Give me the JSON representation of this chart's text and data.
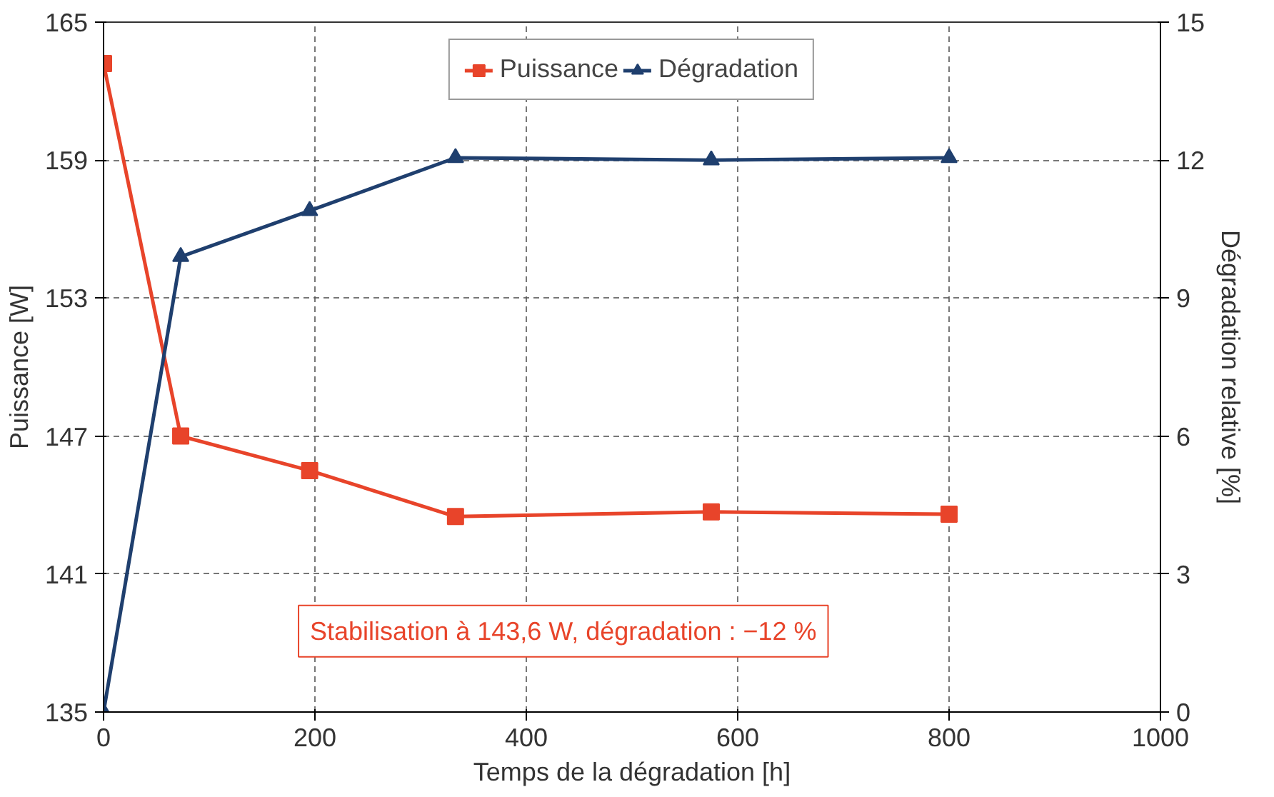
{
  "chart_data": {
    "type": "line",
    "xlabel": "Temps de la dégradation [h]",
    "ylabel": "Puissance [W]",
    "y2label": "Dégradation relative [%]",
    "xlim": [
      0,
      1000
    ],
    "xticks": [
      0,
      200,
      400,
      600,
      800,
      1000
    ],
    "ylim": [
      135,
      165
    ],
    "yticks": [
      135,
      141,
      147,
      153,
      159,
      165
    ],
    "y2lim": [
      0,
      15
    ],
    "y2ticks": [
      0,
      3,
      6,
      9,
      12,
      15
    ],
    "grid": true,
    "legend": "top",
    "line_style": "solid",
    "series": [
      {
        "name": "Puissance",
        "color": "#e8442a",
        "marker": "square",
        "x": [
          0,
          73,
          195,
          333,
          575,
          800
        ],
        "values": [
          163.2,
          147.0,
          145.5,
          143.5,
          143.7,
          143.6
        ]
      },
      {
        "name": "Dégradation",
        "color": "#1f3f6e",
        "marker": "triangle",
        "axis": "y2",
        "x": [
          0,
          73,
          195,
          333,
          575,
          800
        ],
        "values": [
          0,
          9.9,
          10.9,
          12.05,
          12.0,
          12.05
        ]
      }
    ],
    "annotations": [
      "Stabilisation à 143,6 W, dégradation : −12 %"
    ]
  }
}
